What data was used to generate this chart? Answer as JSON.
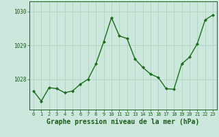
{
  "x": [
    0,
    1,
    2,
    3,
    4,
    5,
    6,
    7,
    8,
    9,
    10,
    11,
    12,
    13,
    14,
    15,
    16,
    17,
    18,
    19,
    20,
    21,
    22,
    23
  ],
  "y": [
    1027.65,
    1027.35,
    1027.75,
    1027.72,
    1027.6,
    1027.65,
    1027.85,
    1028.0,
    1028.45,
    1029.1,
    1029.82,
    1029.28,
    1029.2,
    1028.6,
    1028.35,
    1028.15,
    1028.05,
    1027.72,
    1027.7,
    1028.45,
    1028.65,
    1029.05,
    1029.75,
    1029.9
  ],
  "line_color": "#1a6b1a",
  "marker": "D",
  "markersize": 2.2,
  "bg_color": "#cce8dc",
  "grid_color": "#aacfbe",
  "xlabel": "Graphe pression niveau de la mer (hPa)",
  "xlabel_fontsize": 7,
  "xlabel_color": "#1a5c1a",
  "ytick_labels": [
    "1028",
    "1029",
    "1030"
  ],
  "ytick_values": [
    1028,
    1029,
    1030
  ],
  "ylim": [
    1027.1,
    1030.3
  ],
  "xlim": [
    -0.5,
    23.5
  ],
  "tick_color": "#1a5c1a",
  "xtick_fontsize": 5,
  "ytick_fontsize": 5.5,
  "linewidth": 1.0
}
